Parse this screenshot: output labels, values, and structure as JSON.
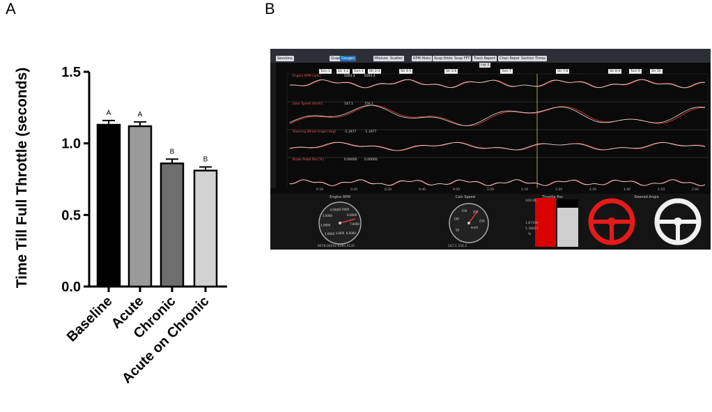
{
  "panels": {
    "a": "A",
    "b": "B"
  },
  "chart_data": {
    "type": "bar",
    "categories": [
      "Baseline",
      "Acute",
      "Chronic",
      "Acute on Chronic"
    ],
    "values": [
      1.13,
      1.12,
      0.86,
      0.81
    ],
    "errors": [
      0.03,
      0.03,
      0.03,
      0.025
    ],
    "significance": [
      "A",
      "A",
      "B",
      "B"
    ],
    "bar_colors": [
      "#000000",
      "#9a9a9a",
      "#6e6e6e",
      "#d2d2d2"
    ],
    "ylabel": "Time Till Full  Throttle (seconds)",
    "ylim": [
      0,
      1.5
    ],
    "yticks": [
      "0.0",
      "0.5",
      "1.0",
      "1.5"
    ],
    "grid": false
  },
  "telemetry": {
    "toolbar_tabs": [
      "Sessions",
      "Graph",
      "Gauges",
      "Mixture",
      "Scatter",
      "RPM Histo",
      "Susp Histo",
      "Susp FFT",
      "Track Report",
      "Chan Report",
      "Section Times"
    ],
    "active_tab": "Gauges",
    "lap_label": "Lap 2",
    "segments": [
      "Turn 1",
      "Str 1-2",
      "Turn 2",
      "Str 2-3",
      "Str 4-5",
      "Str 5-6",
      "Turn 7",
      "Str 7-8",
      "Str 8-9",
      "Turn 9",
      "Str 10"
    ],
    "channels": [
      {
        "label": "Engine RPM [rpm]",
        "val_a": "6283.4",
        "val_b": "6283.4"
      },
      {
        "label": "Gear Speed [km/h]",
        "val_a": "147.1",
        "val_b": "156.1"
      },
      {
        "label": "Steering Wheel Angle [deg]",
        "val_a": "-1.1977",
        "val_b": "-1.1977"
      },
      {
        "label": "Brake Pedal Pos [%]",
        "val_a": "0.00000",
        "val_b": "0.00000"
      }
    ],
    "time_ticks": [
      "0:10",
      "0:20",
      "0:30",
      "0:40",
      "0:50",
      "1:00",
      "1:10",
      "1:20",
      "1:30",
      "1:40",
      "1:50",
      "2:00"
    ],
    "gauges": {
      "rpm_title": "Engine RPM",
      "rpm_scale": [
        "1.0000",
        "2.0000",
        "3.0000",
        "4.0000",
        "5.0000",
        "6.0000",
        "7.0000",
        "8.0000"
      ],
      "rpm_unit": "x1000",
      "rpm_readout": "6678.00042   6283.4135",
      "speed_title": "Calc Speed",
      "speed_scale": [
        "50",
        "100",
        "150",
        "200",
        "250"
      ],
      "speed_unit": "km/h",
      "speed_readout": "147.1   156.1",
      "throttle_title": "Throttle Pos",
      "throttle_scale": "100.00",
      "throttle_val_a": "1.87190",
      "throttle_val_b": "5.36857",
      "throttle_unit": "%",
      "steer_title": "Steered Angle"
    }
  }
}
